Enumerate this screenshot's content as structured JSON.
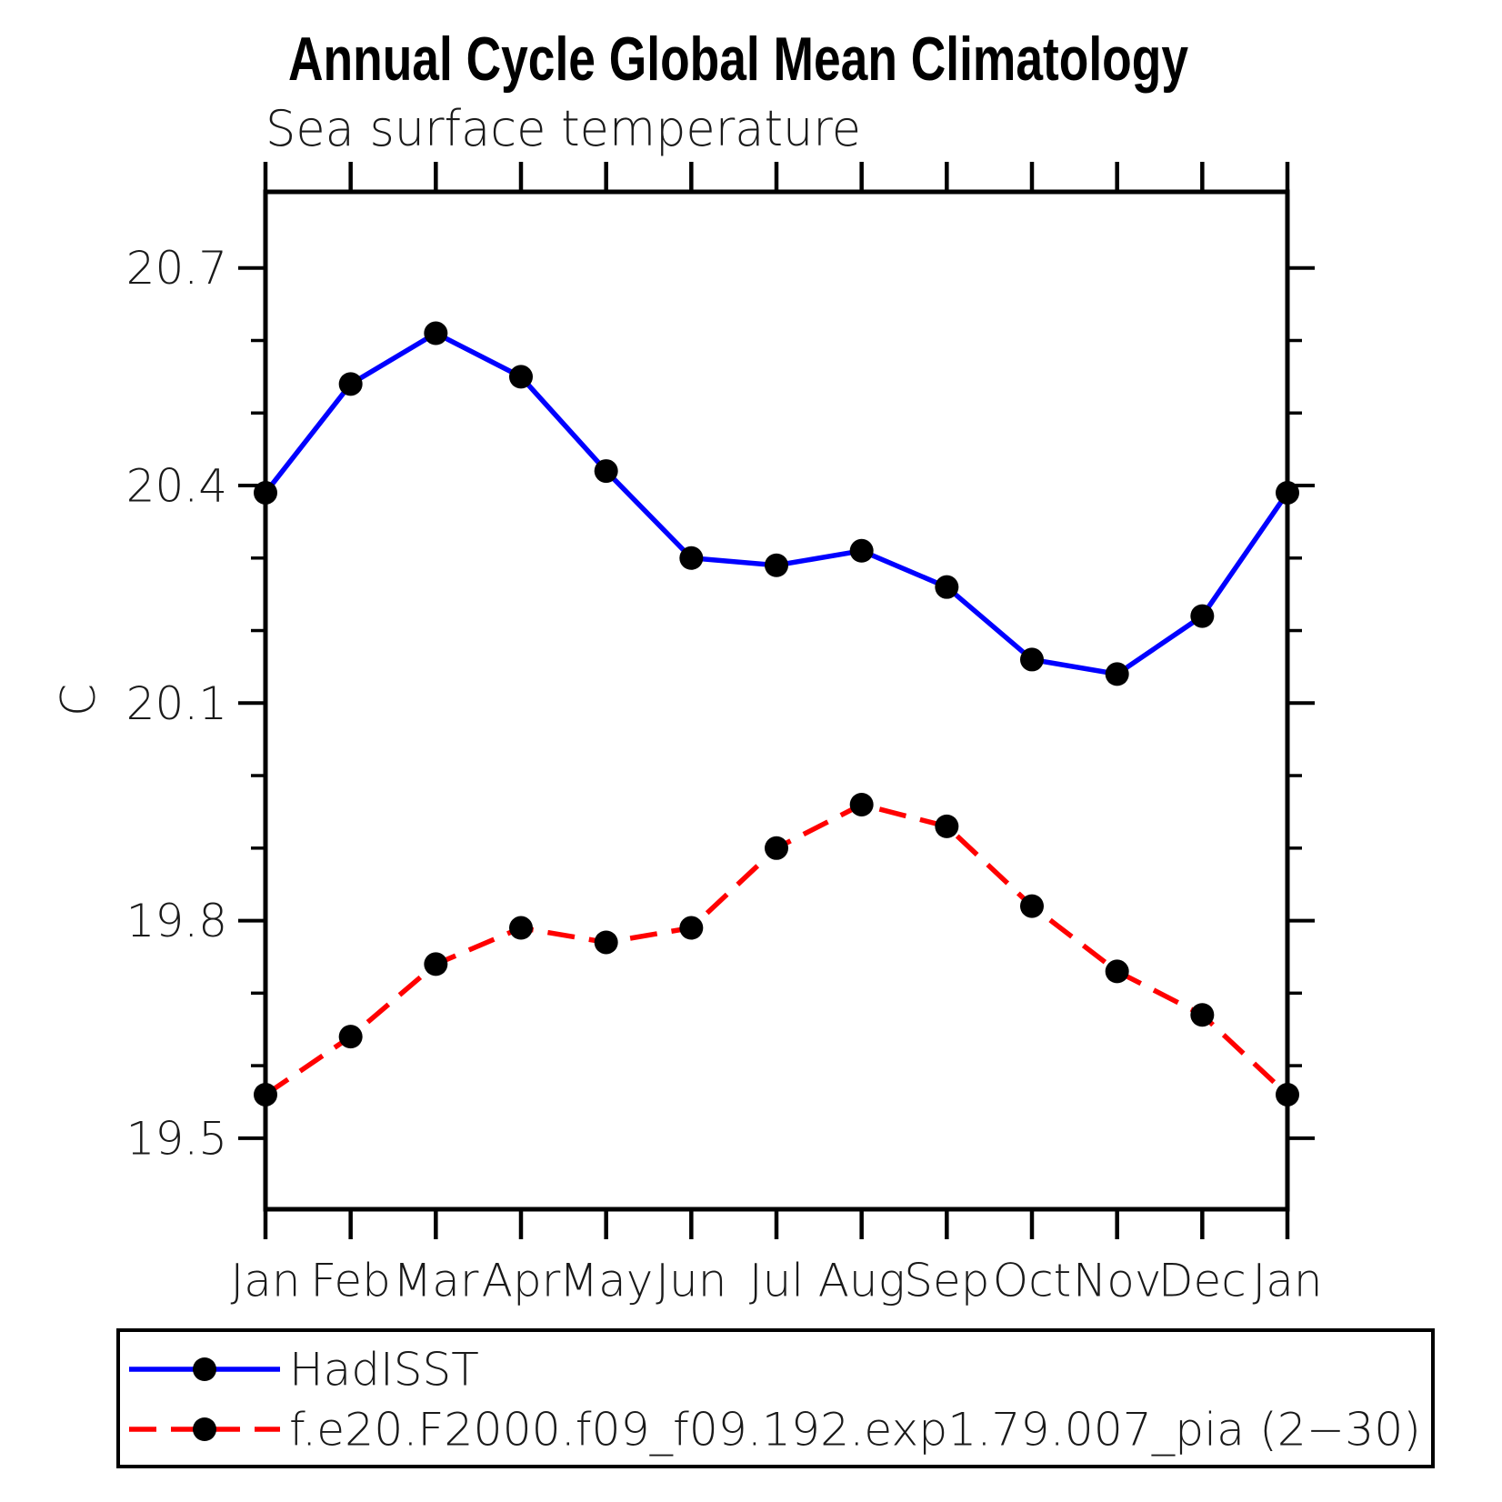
{
  "page": {
    "title": "Annual Cycle Global Mean Climatology",
    "subtitle": "Sea surface temperature"
  },
  "chart_data": {
    "type": "line",
    "title": "Annual Cycle Global Mean Climatology",
    "subtitle": "Sea surface temperature",
    "xlabel": "",
    "ylabel": "C",
    "categories": [
      "Jan",
      "Feb",
      "Mar",
      "Apr",
      "May",
      "Jun",
      "Jul",
      "Aug",
      "Sep",
      "Oct",
      "Nov",
      "Dec",
      "Jan"
    ],
    "ylim": [
      19.402,
      20.805
    ],
    "yticks_major": [
      19.5,
      19.8,
      20.1,
      20.4,
      20.7
    ],
    "ytick_labels": [
      "19.5",
      "19.8",
      "20.1",
      "20.4",
      "20.7"
    ],
    "yticks_minor": [
      19.6,
      19.7,
      19.9,
      20.0,
      20.2,
      20.3,
      20.5,
      20.6
    ],
    "grid": false,
    "legend_position": "bottom-left-box",
    "series": [
      {
        "name": "HadISST",
        "color": "#0000ff",
        "line_style": "solid",
        "marker": "filled-circle",
        "marker_color": "#000000",
        "values": [
          20.39,
          20.54,
          20.61,
          20.55,
          20.42,
          20.3,
          20.29,
          20.31,
          20.26,
          20.16,
          20.14,
          20.22,
          20.39
        ]
      },
      {
        "name": "f.e20.F2000.f09_f09.192.exp1.79.007_pia (2−30)",
        "color": "#ff0000",
        "line_style": "dashed",
        "marker": "filled-circle",
        "marker_color": "#000000",
        "values": [
          19.56,
          19.64,
          19.74,
          19.79,
          19.77,
          19.79,
          19.9,
          19.96,
          19.93,
          19.82,
          19.73,
          19.67,
          19.56
        ]
      }
    ]
  },
  "colors": {
    "axis": "#000000",
    "background": "#ffffff",
    "series1": "#0000ff",
    "series2": "#ff0000"
  }
}
